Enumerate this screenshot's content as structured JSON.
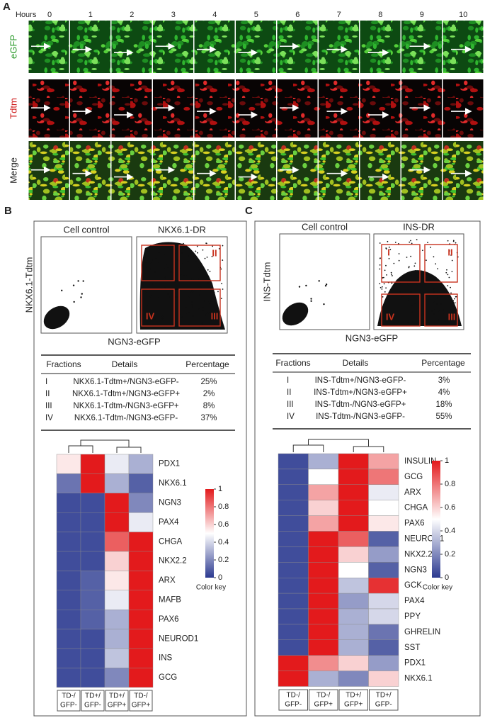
{
  "panel_a": {
    "label": "A",
    "hours_label": "Hours",
    "hours": [
      0,
      1,
      2,
      3,
      4,
      5,
      6,
      7,
      8,
      9,
      10
    ],
    "rows": [
      "eGFP",
      "Tdtm",
      "Merge"
    ]
  },
  "panel_b": {
    "label": "B",
    "flow": {
      "y_label": "NKX6.1-Tdtm",
      "x_label": "NGN3-eGFP",
      "control_title": "Cell control",
      "dr_title": "NKX6.1-DR",
      "gates": [
        "II",
        "IV",
        "III"
      ]
    },
    "table": {
      "header": [
        "Fractions",
        "Details",
        "Percentage"
      ],
      "rows": [
        [
          "I",
          "NKX6.1-Tdtm+/NGN3-eGFP-",
          "25%"
        ],
        [
          "II",
          "NKX6.1-Tdtm+/NGN3-eGFP+",
          "2%"
        ],
        [
          "III",
          "NKX6.1-Tdtm-/NGN3-eGFP+",
          "8%"
        ],
        [
          "IV",
          "NKX6.1-Tdtm-/NGN3-eGFP-",
          "37%"
        ]
      ]
    },
    "heatmap": {
      "genes": [
        "PDX1",
        "NKX6.1",
        "NGN3",
        "PAX4",
        "CHGA",
        "NKX2.2",
        "ARX",
        "MAFB",
        "PAX6",
        "NEUROD1",
        "INS",
        "GCG"
      ],
      "columns": [
        [
          "TD-/",
          "GFP-"
        ],
        [
          "TD+/",
          "GFP-"
        ],
        [
          "TD+/",
          "GFP+"
        ],
        [
          "TD-/",
          "GFP+"
        ]
      ],
      "values": [
        [
          0.55,
          1,
          0.45,
          0.3
        ],
        [
          0.15,
          1,
          0.3,
          0.1
        ],
        [
          0.05,
          0.05,
          1,
          0.2
        ],
        [
          0.05,
          0.05,
          1,
          0.45
        ],
        [
          0.05,
          0.05,
          0.85,
          1
        ],
        [
          0.05,
          0.05,
          0.6,
          1
        ],
        [
          0.05,
          0.1,
          0.55,
          1
        ],
        [
          0.05,
          0.1,
          0.45,
          1
        ],
        [
          0.05,
          0.1,
          0.3,
          1
        ],
        [
          0.05,
          0.05,
          0.3,
          1
        ],
        [
          0.05,
          0.05,
          0.35,
          1
        ],
        [
          0.05,
          0.05,
          0.2,
          1
        ]
      ],
      "key_title": "Color key",
      "key_ticks": [
        0,
        0.2,
        0.4,
        0.6,
        0.8,
        1
      ]
    }
  },
  "panel_c": {
    "label": "C",
    "flow": {
      "y_label": "INS-Tdtm",
      "x_label": "NGN3-eGFP",
      "control_title": "Cell control",
      "dr_title": "INS-DR",
      "gates": [
        "I",
        "II",
        "IV",
        "III"
      ]
    },
    "table": {
      "header": [
        "Fractions",
        "Details",
        "Percentage"
      ],
      "rows": [
        [
          "I",
          "INS-Tdtm+/NGN3-eGFP-",
          "3%"
        ],
        [
          "II",
          "INS-Tdtm+/NGN3-eGFP+",
          "4%"
        ],
        [
          "III",
          "INS-Tdtm-/NGN3-eGFP+",
          "18%"
        ],
        [
          "IV",
          "INS-Tdtm-/NGN3-eGFP-",
          "55%"
        ]
      ]
    },
    "heatmap": {
      "genes": [
        "INSULIN",
        "GCG",
        "ARX",
        "CHGA",
        "PAX6",
        "NEUROD1",
        "NKX2.2",
        "NGN3",
        "GCK",
        "PAX4",
        "PPY",
        "GHRELIN",
        "SST",
        "PDX1",
        "NKX6.1"
      ],
      "columns": [
        [
          "TD-/",
          "GFP-"
        ],
        [
          "TD-/",
          "GFP+"
        ],
        [
          "TD+/",
          "GFP+"
        ],
        [
          "TD+/",
          "GFP-"
        ]
      ],
      "values": [
        [
          0.05,
          0.3,
          1,
          0.7
        ],
        [
          0.05,
          0.5,
          1,
          0.8
        ],
        [
          0.05,
          0.7,
          1,
          0.45
        ],
        [
          0.05,
          0.6,
          1,
          0.5
        ],
        [
          0.05,
          0.7,
          1,
          0.55
        ],
        [
          0.05,
          1,
          0.85,
          0.1
        ],
        [
          0.05,
          1,
          0.6,
          0.25
        ],
        [
          0.05,
          1,
          0.5,
          0.1
        ],
        [
          0.05,
          1,
          0.35,
          0.95
        ],
        [
          0.05,
          1,
          0.25,
          0.4
        ],
        [
          0.05,
          1,
          0.3,
          0.4
        ],
        [
          0.05,
          1,
          0.3,
          0.15
        ],
        [
          0.05,
          1,
          0.3,
          0.1
        ],
        [
          1,
          0.75,
          0.6,
          0.25
        ],
        [
          1,
          0.3,
          0.2,
          0.6
        ]
      ],
      "key_title": "Color key",
      "key_ticks": [
        0,
        0.2,
        0.4,
        0.6,
        0.8,
        1
      ]
    }
  }
}
